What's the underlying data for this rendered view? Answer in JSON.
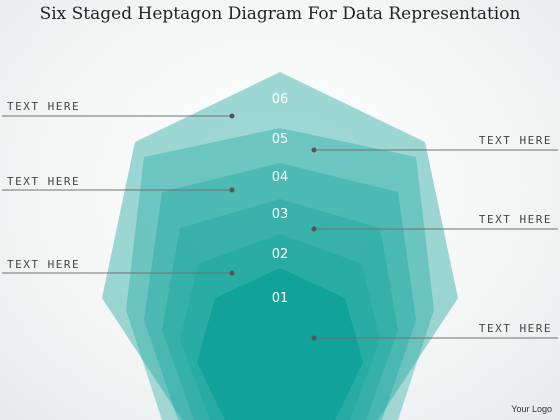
{
  "title": "Six Staged Heptagon Diagram For Data Representation",
  "colors": {
    "stage_fill": "#11a39b",
    "line": "#707070",
    "dot": "#555555"
  },
  "stages": [
    {
      "number": "01",
      "opacity": 1.0
    },
    {
      "number": "02",
      "opacity": 0.35
    },
    {
      "number": "03",
      "opacity": 0.35
    },
    {
      "number": "04",
      "opacity": 0.35
    },
    {
      "number": "05",
      "opacity": 0.35
    },
    {
      "number": "06",
      "opacity": 0.4
    }
  ],
  "callouts": [
    {
      "text": "TEXT HERE",
      "side": "left"
    },
    {
      "text": "TEXT HERE",
      "side": "left"
    },
    {
      "text": "TEXT HERE",
      "side": "left"
    },
    {
      "text": "TEXT HERE",
      "side": "right"
    },
    {
      "text": "TEXT HERE",
      "side": "right"
    },
    {
      "text": "TEXT HERE",
      "side": "right"
    }
  ],
  "logo": "Your Logo"
}
